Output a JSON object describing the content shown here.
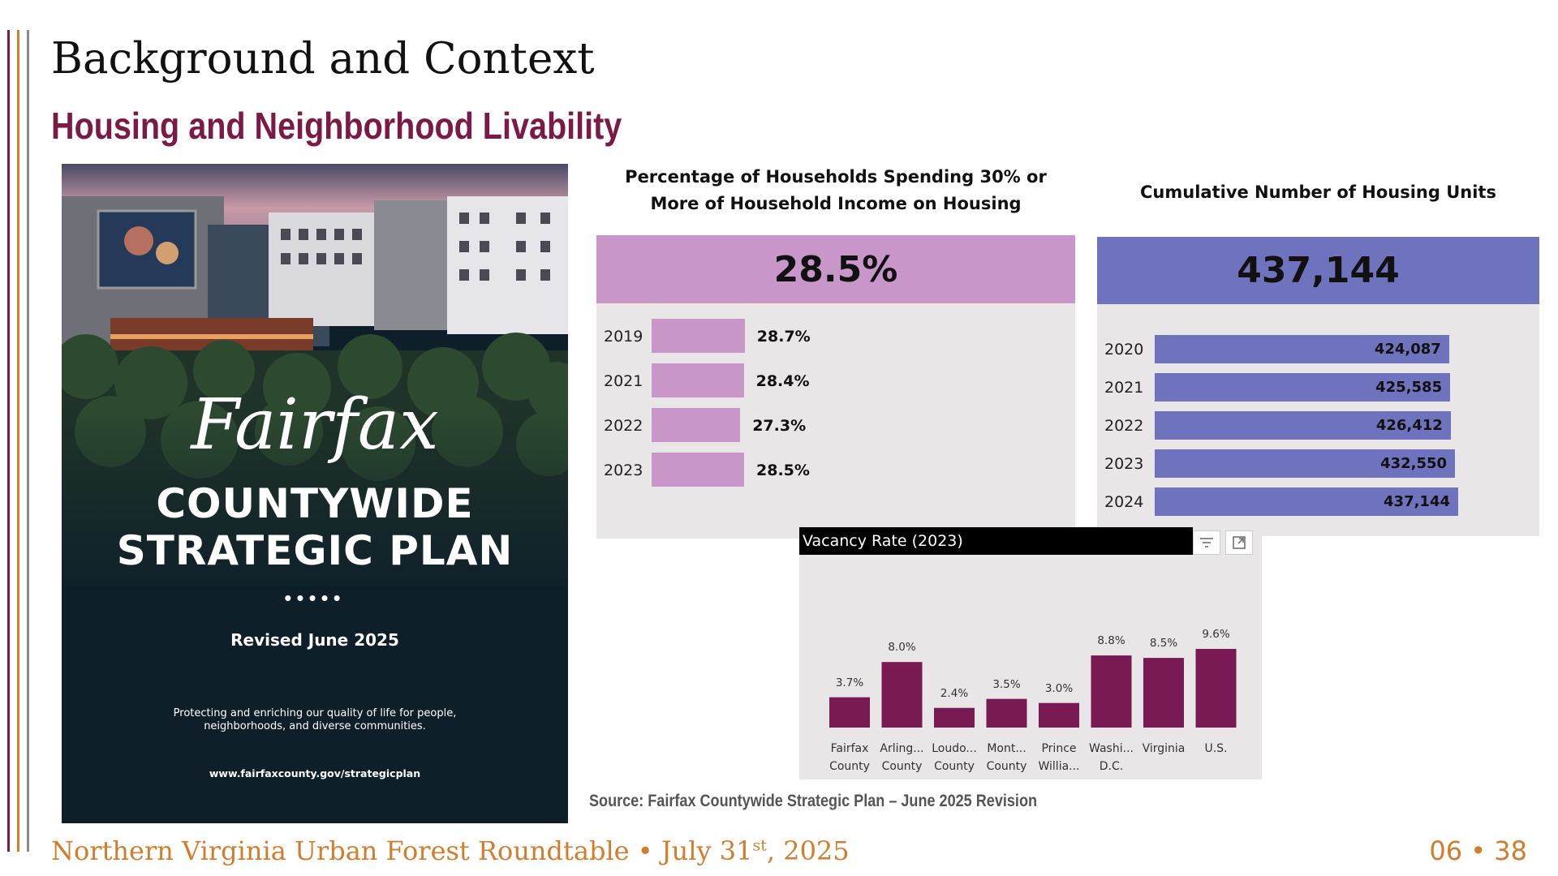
{
  "slide": {
    "title": "Background and Context",
    "subtitle": "Housing and Neighborhood Livability",
    "source": "Source: Fairfax Countywide Strategic Plan – June 2025 Revision",
    "page_number": "06 • 38",
    "colors": {
      "accent": "#7a1a45",
      "footer": "#d27d2d",
      "stripe_1": "#7a1a45",
      "stripe_2": "#d27d2d",
      "stripe_3": "#8a8a8a"
    }
  },
  "footer": {
    "event": "Northern Virginia Urban Forest Roundtable • July 31",
    "date_suffix": "st",
    "year": ", 2025"
  },
  "cover": {
    "script_title": "Fairfax",
    "title_line_1": "COUNTYWIDE",
    "title_line_2": "STRATEGIC PLAN",
    "dots": "•••••",
    "revised": "Revised June 2025",
    "tagline": "Protecting and enriching our quality of life for people, neighborhoods, and diverse communities.",
    "url": "www.fairfaxcounty.gov/strategicplan"
  },
  "cost_burden": {
    "heading_line_1": "Percentage of Households Spending 30% or",
    "heading_line_2": "More of Household Income on Housing",
    "kpi": "28.5%",
    "color": "#c896c8"
  },
  "housing_units": {
    "heading": "Cumulative Number of Housing Units",
    "kpi": "437,144",
    "color": "#6f73bd"
  },
  "vacancy": {
    "title": "Vacancy Rate (2023)",
    "filter_icon": "filter-icon",
    "expand_icon": "focus-mode-icon",
    "color": "#7a1a55"
  },
  "chart_data": [
    {
      "type": "bar",
      "orientation": "horizontal",
      "title": "Percentage of Households Spending 30% or More of Household Income on Housing",
      "categories": [
        "2019",
        "2021",
        "2022",
        "2023"
      ],
      "values": [
        28.7,
        28.4,
        27.3,
        28.5
      ],
      "labels": [
        "28.7%",
        "28.4%",
        "27.3%",
        "28.5%"
      ]
    },
    {
      "type": "bar",
      "orientation": "horizontal",
      "title": "Cumulative Number of Housing Units",
      "categories": [
        "2020",
        "2021",
        "2022",
        "2023",
        "2024"
      ],
      "values": [
        424087,
        425585,
        426412,
        432550,
        437144
      ],
      "labels": [
        "424,087",
        "425,585",
        "426,412",
        "432,550",
        "437,144"
      ]
    },
    {
      "type": "bar",
      "title": "Vacancy Rate (2023)",
      "categories": [
        "Fairfax County",
        "Arling... County",
        "Loudo... County",
        "Mont... County",
        "Prince Willia...",
        "Washi... D.C.",
        "Virginia",
        "U.S."
      ],
      "category_lines": [
        [
          "Fairfax",
          "County"
        ],
        [
          "Arling...",
          "County"
        ],
        [
          "Loudo...",
          "County"
        ],
        [
          "Mont...",
          "County"
        ],
        [
          "Prince",
          "Willia..."
        ],
        [
          "Washi...",
          "D.C."
        ],
        [
          "Virginia",
          ""
        ],
        [
          "U.S.",
          ""
        ]
      ],
      "values": [
        3.7,
        8.0,
        2.4,
        3.5,
        3.0,
        8.8,
        8.5,
        9.6
      ],
      "labels": [
        "3.7%",
        "8.0%",
        "2.4%",
        "3.5%",
        "3.0%",
        "8.8%",
        "8.5%",
        "9.6%"
      ]
    }
  ]
}
